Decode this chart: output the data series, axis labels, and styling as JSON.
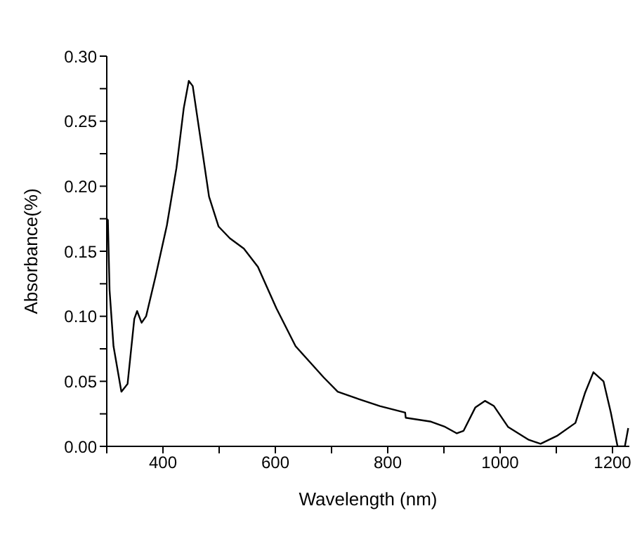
{
  "chart_data": {
    "type": "line",
    "xlabel": "Wavelength (nm)",
    "ylabel": "Absorbance(%)",
    "xlim": [
      300,
      1230
    ],
    "ylim": [
      0,
      0.3
    ],
    "xticks": [
      {
        "value": 300,
        "label": null
      },
      400,
      {
        "value": 500,
        "label": null
      },
      600,
      {
        "value": 700,
        "label": null
      },
      800,
      {
        "value": 900,
        "label": null
      },
      1000,
      {
        "value": 1100,
        "label": null
      },
      1200
    ],
    "yticks": [
      {
        "value": 0,
        "label": "0.00"
      },
      {
        "value": 0.025,
        "label": null
      },
      {
        "value": 0.05,
        "label": "0.05"
      },
      {
        "value": 0.075,
        "label": null
      },
      {
        "value": 0.1,
        "label": "0.10"
      },
      {
        "value": 0.125,
        "label": null
      },
      {
        "value": 0.15,
        "label": "0.15"
      },
      {
        "value": 0.175,
        "label": null
      },
      {
        "value": 0.2,
        "label": "0.20"
      },
      {
        "value": 0.225,
        "label": null
      },
      {
        "value": 0.25,
        "label": "0.25"
      },
      {
        "value": 0.275,
        "label": null
      },
      {
        "value": 0.3,
        "label": "0.30"
      }
    ],
    "marker": "none",
    "line_style": "solid",
    "series": [
      {
        "color": "#000000",
        "x": [
          300,
          302,
          305,
          312,
          326,
          337,
          349,
          354,
          362,
          370,
          387,
          407,
          424,
          437,
          446,
          453,
          466,
          482,
          499,
          519,
          544,
          569,
          602,
          636,
          661,
          686,
          711,
          744,
          786,
          831,
          832,
          877,
          902,
          923,
          935,
          956,
          973,
          989,
          1014,
          1051,
          1072,
          1101,
          1134,
          1151,
          1166,
          1184,
          1197,
          1209,
          1222,
          1228
        ],
        "values": [
          0.175,
          0.174,
          0.12,
          0.077,
          0.042,
          0.048,
          0.098,
          0.104,
          0.095,
          0.1,
          0.131,
          0.17,
          0.214,
          0.26,
          0.281,
          0.277,
          0.239,
          0.192,
          0.169,
          0.16,
          0.152,
          0.138,
          0.106,
          0.077,
          0.065,
          0.053,
          0.042,
          0.037,
          0.031,
          0.026,
          0.022,
          0.019,
          0.015,
          0.01,
          0.012,
          0.03,
          0.035,
          0.031,
          0.015,
          0.005,
          0.002,
          0.008,
          0.018,
          0.041,
          0.057,
          0.05,
          0.026,
          0,
          0,
          0.014
        ]
      }
    ]
  }
}
